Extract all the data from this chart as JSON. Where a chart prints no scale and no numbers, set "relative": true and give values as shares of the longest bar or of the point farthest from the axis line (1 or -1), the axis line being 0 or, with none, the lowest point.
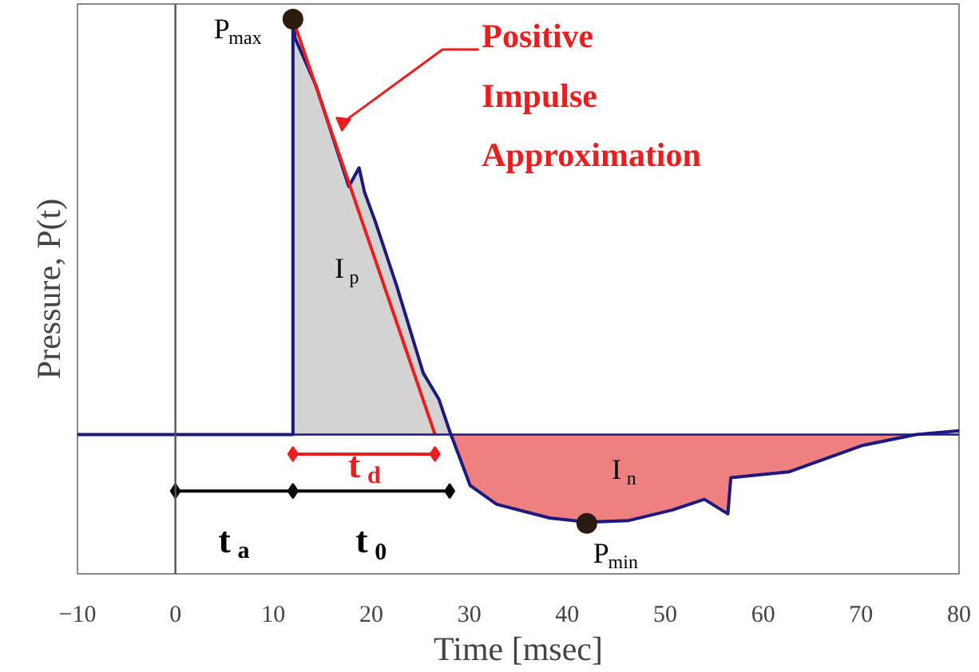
{
  "chart_data": {
    "type": "line",
    "relative": true,
    "xlabel": "Time [msec]",
    "ylabel": "Pressure, P(t)",
    "xlim": [
      -10,
      80
    ],
    "xticks": [
      -10,
      0,
      10,
      20,
      30,
      40,
      50,
      60,
      70,
      80
    ],
    "grid": false,
    "series": [
      {
        "type": "area",
        "color": "#d3d3d3",
        "x": [
          12,
          12,
          12.24,
          14.4,
          17.7,
          18.75,
          19.3,
          20.4,
          22.6,
          25.3,
          26.9,
          28
        ],
        "values": [
          0,
          1.0,
          0.953,
          0.837,
          0.597,
          0.642,
          0.584,
          0.513,
          0.357,
          0.148,
          0.085,
          0
        ]
      },
      {
        "type": "area",
        "color": "#f08080",
        "x": [
          28,
          30.1,
          32.8,
          38.2,
          42.1,
          46.3,
          50.7,
          54,
          56.4,
          56.7,
          62.6,
          70.2,
          75.6
        ],
        "values": [
          0,
          -0.123,
          -0.168,
          -0.201,
          -0.211,
          -0.207,
          -0.182,
          -0.156,
          -0.191,
          -0.104,
          -0.09,
          -0.026,
          0
        ]
      },
      {
        "color": "#1a1a80",
        "x": [
          -10,
          12,
          12,
          12.24,
          14.4,
          17.7,
          18.75,
          19.3,
          20.4,
          22.6,
          25.3,
          26.9,
          28,
          30.1,
          32.8,
          38.2,
          42.1,
          46.3,
          50.7,
          54,
          56.4,
          56.7,
          62.6,
          70.2,
          75.6,
          80
        ],
        "values": [
          0,
          0,
          1.0,
          0.953,
          0.837,
          0.597,
          0.642,
          0.584,
          0.513,
          0.357,
          0.148,
          0.085,
          0.008,
          -0.123,
          -0.168,
          -0.201,
          -0.211,
          -0.207,
          -0.182,
          -0.156,
          -0.191,
          -0.104,
          -0.09,
          -0.026,
          0,
          0.009
        ]
      },
      {
        "type": "line",
        "color": "#ee1c1c",
        "x": [
          12,
          26.5
        ],
        "values": [
          1.0,
          0
        ]
      },
      {
        "type": "line",
        "color": "#000000",
        "marker": "diamond",
        "x": [
          0,
          12
        ],
        "values": [
          -0.136,
          -0.136
        ]
      },
      {
        "type": "line",
        "color": "#000000",
        "marker": "diamond",
        "x": [
          12,
          28
        ],
        "values": [
          -0.136,
          -0.136
        ]
      },
      {
        "type": "line",
        "color": "#ee1c1c",
        "marker": "diamond",
        "x": [
          12,
          26.5
        ],
        "values": [
          -0.047,
          -0.047
        ]
      },
      {
        "type": "scatter",
        "color": "#2b1a10",
        "x": [
          12,
          42
        ],
        "values": [
          1.0,
          -0.214
        ]
      }
    ],
    "ref_lines": [
      {
        "axis": "y",
        "value": 0,
        "color": "#1a1a80"
      },
      {
        "axis": "x",
        "value": 0,
        "color": "#555555"
      }
    ],
    "annotations": [
      {
        "text": "Positive\nImpulse\nApproximation",
        "x": 16.6,
        "y": 0.74
      },
      "P$_{max}$",
      "P$_{min}$",
      "I$_{p}$",
      "I$_{n}$",
      "t$_{a}$",
      "t$_{d}$",
      "t$_{0}$"
    ]
  }
}
